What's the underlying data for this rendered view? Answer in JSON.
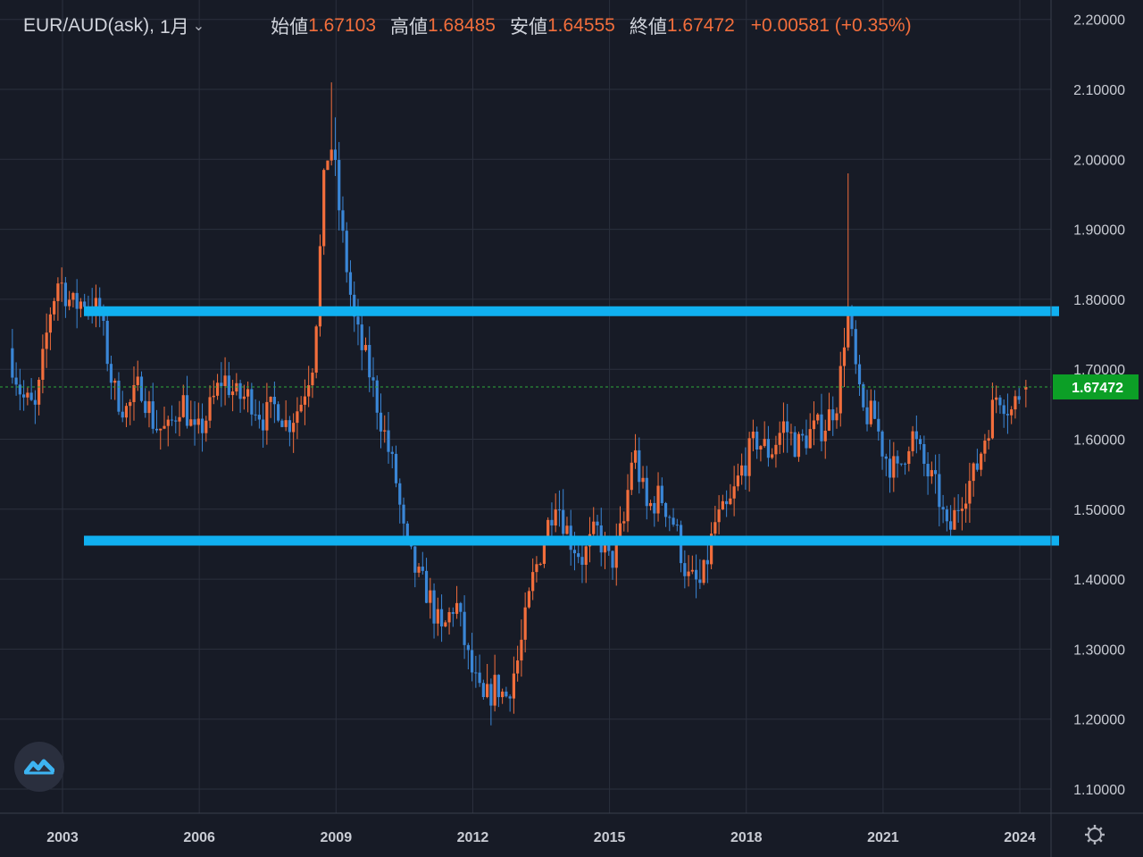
{
  "legend": {
    "symbol": "EUR/AUD(ask),",
    "interval": "1月",
    "open_label": "始値",
    "open": "1.67103",
    "high_label": "高値",
    "high": "1.68485",
    "low_label": "安値",
    "low": "1.64555",
    "close_label": "終値",
    "close": "1.67472",
    "change": "+0.00581 (+0.35%)"
  },
  "icons": {
    "chevron": "chevron-down-icon",
    "logo": "tradingview-logo-icon",
    "settings": "gear-icon"
  },
  "colors": {
    "background": "#171b26",
    "up": "#f26e3c",
    "down": "#3a86d6",
    "hline": "#10b0f0",
    "price_tag": "#0c9f26",
    "grid": "#2b303d"
  },
  "chart_data": {
    "type": "candlestick",
    "title": "EUR/AUD(ask), 1月",
    "interval": "monthly",
    "x_range": [
      2001.6,
      2025.5
    ],
    "ylim": [
      1.05,
      2.25
    ],
    "x_ticks": [
      "2003",
      "2006",
      "2009",
      "2012",
      "2015",
      "2018",
      "2021",
      "2024"
    ],
    "y_ticks": [
      "2.20000",
      "2.10000",
      "2.00000",
      "1.90000",
      "1.80000",
      "1.70000",
      "1.60000",
      "1.50000",
      "1.40000",
      "1.30000",
      "1.20000",
      "1.10000"
    ],
    "grid": true,
    "current_price": 1.67472,
    "current_price_label": "1.67472",
    "last_candle": {
      "open": 1.67103,
      "high": 1.68485,
      "low": 1.64555,
      "close": 1.67472
    },
    "horizontal_lines": [
      1.783,
      1.455
    ],
    "path": [
      [
        2001.9,
        1.73
      ],
      [
        2002.2,
        1.66
      ],
      [
        2002.5,
        1.64
      ],
      [
        2002.8,
        1.78
      ],
      [
        2003.0,
        1.83
      ],
      [
        2003.3,
        1.79
      ],
      [
        2003.6,
        1.8
      ],
      [
        2003.9,
        1.78
      ],
      [
        2004.2,
        1.67
      ],
      [
        2004.5,
        1.64
      ],
      [
        2004.8,
        1.68
      ],
      [
        2005.1,
        1.62
      ],
      [
        2005.4,
        1.61
      ],
      [
        2005.7,
        1.66
      ],
      [
        2006.0,
        1.6
      ],
      [
        2006.3,
        1.64
      ],
      [
        2006.6,
        1.69
      ],
      [
        2006.9,
        1.66
      ],
      [
        2007.2,
        1.66
      ],
      [
        2007.5,
        1.63
      ],
      [
        2007.8,
        1.65
      ],
      [
        2008.0,
        1.62
      ],
      [
        2008.3,
        1.65
      ],
      [
        2008.6,
        1.72
      ],
      [
        2008.85,
        2.0
      ],
      [
        2009.0,
        2.02
      ],
      [
        2009.2,
        1.9
      ],
      [
        2009.5,
        1.76
      ],
      [
        2009.8,
        1.7
      ],
      [
        2010.1,
        1.62
      ],
      [
        2010.4,
        1.54
      ],
      [
        2010.6,
        1.45
      ],
      [
        2010.9,
        1.4
      ],
      [
        2011.1,
        1.38
      ],
      [
        2011.4,
        1.32
      ],
      [
        2011.7,
        1.37
      ],
      [
        2012.0,
        1.28
      ],
      [
        2012.3,
        1.22
      ],
      [
        2012.6,
        1.25
      ],
      [
        2012.8,
        1.23
      ],
      [
        2013.1,
        1.29
      ],
      [
        2013.4,
        1.4
      ],
      [
        2013.7,
        1.47
      ],
      [
        2013.9,
        1.52
      ],
      [
        2014.2,
        1.46
      ],
      [
        2014.5,
        1.43
      ],
      [
        2014.8,
        1.47
      ],
      [
        2015.1,
        1.42
      ],
      [
        2015.4,
        1.48
      ],
      [
        2015.6,
        1.59
      ],
      [
        2015.9,
        1.5
      ],
      [
        2016.2,
        1.52
      ],
      [
        2016.5,
        1.48
      ],
      [
        2016.8,
        1.4
      ],
      [
        2017.1,
        1.39
      ],
      [
        2017.4,
        1.48
      ],
      [
        2017.7,
        1.5
      ],
      [
        2018.0,
        1.56
      ],
      [
        2018.3,
        1.6
      ],
      [
        2018.6,
        1.58
      ],
      [
        2018.9,
        1.62
      ],
      [
        2019.2,
        1.59
      ],
      [
        2019.5,
        1.61
      ],
      [
        2019.8,
        1.62
      ],
      [
        2020.1,
        1.66
      ],
      [
        2020.3,
        1.79
      ],
      [
        2020.6,
        1.64
      ],
      [
        2020.9,
        1.63
      ],
      [
        2021.1,
        1.58
      ],
      [
        2021.4,
        1.55
      ],
      [
        2021.7,
        1.61
      ],
      [
        2022.0,
        1.56
      ],
      [
        2022.3,
        1.52
      ],
      [
        2022.5,
        1.46
      ],
      [
        2022.8,
        1.52
      ],
      [
        2023.1,
        1.55
      ],
      [
        2023.3,
        1.6
      ],
      [
        2023.6,
        1.67
      ],
      [
        2023.9,
        1.64
      ],
      [
        2024.1,
        1.67
      ]
    ]
  }
}
